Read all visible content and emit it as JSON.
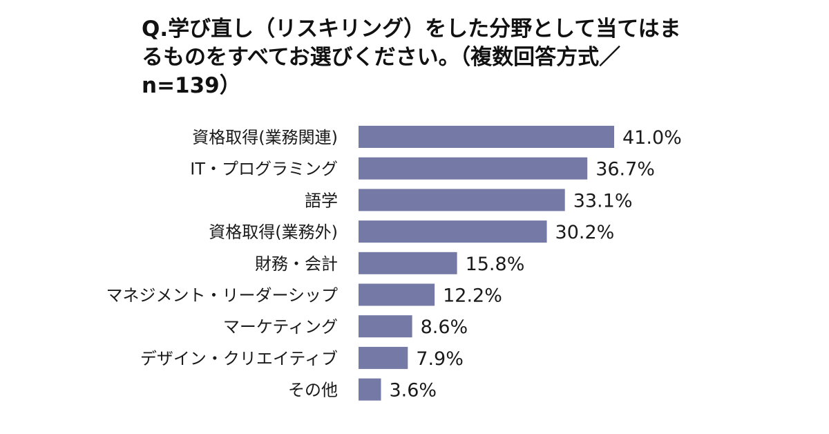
{
  "title": {
    "lines": [
      "Q.学び直し（リスキリング）をした分野として当てはま",
      "るものをすべてお選びください。（複数回答方式／",
      "n=139）"
    ]
  },
  "colors": {
    "bar": "#7579a6",
    "text": "#1a1a1a"
  },
  "chart_data": {
    "type": "bar",
    "orientation": "horizontal",
    "title": "Q.学び直し（リスキリング）をした分野として当てはまるものをすべてお選びください。（複数回答方式／n=139）",
    "categories": [
      "資格取得(業務関連)",
      "IT・プログラミング",
      "語学",
      "資格取得(業務外)",
      "財務・会計",
      "マネジメント・リーダーシップ",
      "マーケティング",
      "デザイン・クリエイティブ",
      "その他"
    ],
    "values": [
      41.0,
      36.7,
      33.1,
      30.2,
      15.8,
      12.2,
      8.6,
      7.9,
      3.6
    ],
    "value_labels": [
      "41.0%",
      "36.7%",
      "33.1%",
      "30.2%",
      "15.8%",
      "12.2%",
      "8.6%",
      "7.9%",
      "3.6%"
    ],
    "unit": "%",
    "xlabel": "",
    "ylabel": "",
    "xlim": [
      0,
      41.0
    ],
    "grid": false,
    "legend": "none"
  }
}
